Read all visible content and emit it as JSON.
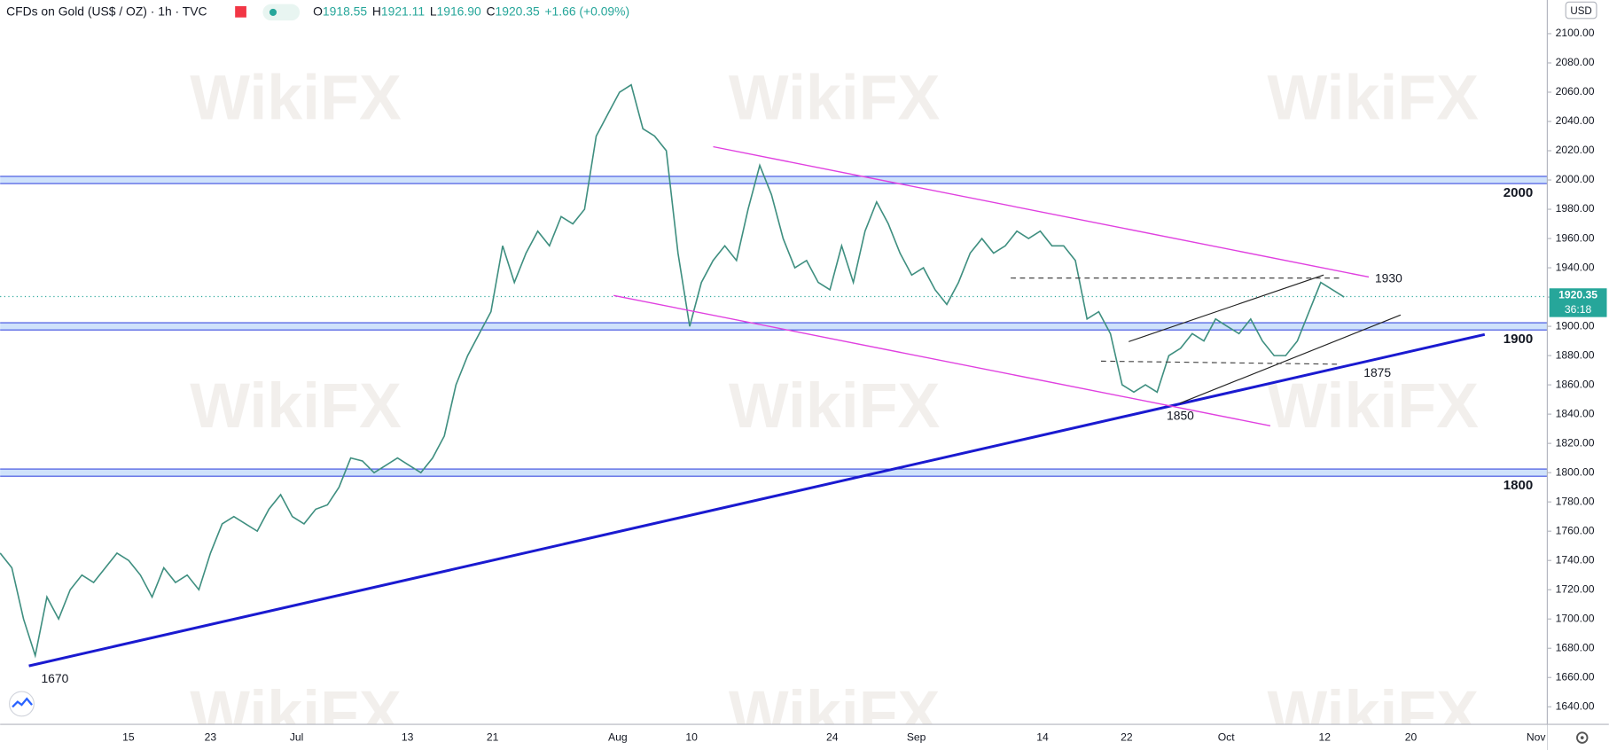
{
  "chart_data": {
    "type": "line",
    "symbol": "CFDs on Gold (US$ / OZ) · 1h · TVC",
    "ohlc_labels": [
      "O",
      "H",
      "L",
      "C"
    ],
    "ohlc_values": [
      "1918.55",
      "1921.11",
      "1916.90",
      "1920.35"
    ],
    "change": "+1.66 (+0.09%)",
    "currency": "USD",
    "last_price": {
      "value": 1920.35,
      "label": "1920.35"
    },
    "countdown": "36:18",
    "watermark": "WikiFX",
    "color": "#3f8f80",
    "price_line_color": "#26a69a",
    "values": [
      1745,
      1735,
      1700,
      1675,
      1715,
      1700,
      1720,
      1730,
      1725,
      1735,
      1745,
      1740,
      1730,
      1715,
      1735,
      1725,
      1730,
      1720,
      1745,
      1765,
      1770,
      1765,
      1760,
      1775,
      1785,
      1770,
      1765,
      1775,
      1778,
      1790,
      1810,
      1808,
      1800,
      1805,
      1810,
      1805,
      1800,
      1810,
      1825,
      1860,
      1880,
      1895,
      1910,
      1955,
      1930,
      1950,
      1965,
      1955,
      1975,
      1970,
      1980,
      2030,
      2045,
      2060,
      2065,
      2035,
      2030,
      2020,
      1950,
      1900,
      1930,
      1945,
      1955,
      1945,
      1980,
      2010,
      1990,
      1960,
      1940,
      1945,
      1930,
      1925,
      1955,
      1930,
      1965,
      1985,
      1970,
      1950,
      1935,
      1940,
      1925,
      1915,
      1930,
      1950,
      1960,
      1950,
      1955,
      1965,
      1960,
      1965,
      1955,
      1955,
      1945,
      1905,
      1910,
      1895,
      1860,
      1855,
      1860,
      1855,
      1880,
      1885,
      1895,
      1890,
      1905,
      1900,
      1895,
      1905,
      1890,
      1880,
      1880,
      1890,
      1910,
      1930,
      1925,
      1920
    ],
    "ylim": [
      1628,
      2123
    ],
    "yticks": [
      {
        "value": 1640,
        "label": "1640.00"
      },
      {
        "value": 1660,
        "label": "1660.00"
      },
      {
        "value": 1680,
        "label": "1680.00"
      },
      {
        "value": 1700,
        "label": "1700.00"
      },
      {
        "value": 1720,
        "label": "1720.00"
      },
      {
        "value": 1740,
        "label": "1740.00"
      },
      {
        "value": 1760,
        "label": "1760.00"
      },
      {
        "value": 1780,
        "label": "1780.00"
      },
      {
        "value": 1800,
        "label": "1800.00"
      },
      {
        "value": 1820,
        "label": "1820.00"
      },
      {
        "value": 1840,
        "label": "1840.00"
      },
      {
        "value": 1860,
        "label": "1860.00"
      },
      {
        "value": 1880,
        "label": "1880.00"
      },
      {
        "value": 1900,
        "label": "1900.00"
      },
      {
        "value": 1920,
        "label": "1920.00"
      },
      {
        "value": 1940,
        "label": "1940.00"
      },
      {
        "value": 1960,
        "label": "1960.00"
      },
      {
        "value": 1980,
        "label": "1980.00"
      },
      {
        "value": 2000,
        "label": "2000.00"
      },
      {
        "value": 2020,
        "label": "2020.00"
      },
      {
        "value": 2040,
        "label": "2040.00"
      },
      {
        "value": 2060,
        "label": "2060.00"
      },
      {
        "value": 2080,
        "label": "2080.00"
      },
      {
        "value": 2100,
        "label": "2100.00"
      }
    ],
    "xticks": [
      "15",
      "23",
      "Jul",
      "13",
      "21",
      "Aug",
      "10",
      "24",
      "Sep",
      "14",
      "22",
      "Oct",
      "12",
      "20",
      "Nov"
    ],
    "levels": [
      2000,
      1900,
      1800
    ],
    "level_color": "#3d4fe0",
    "annotations": [
      1930,
      1875,
      1850,
      1670
    ]
  }
}
